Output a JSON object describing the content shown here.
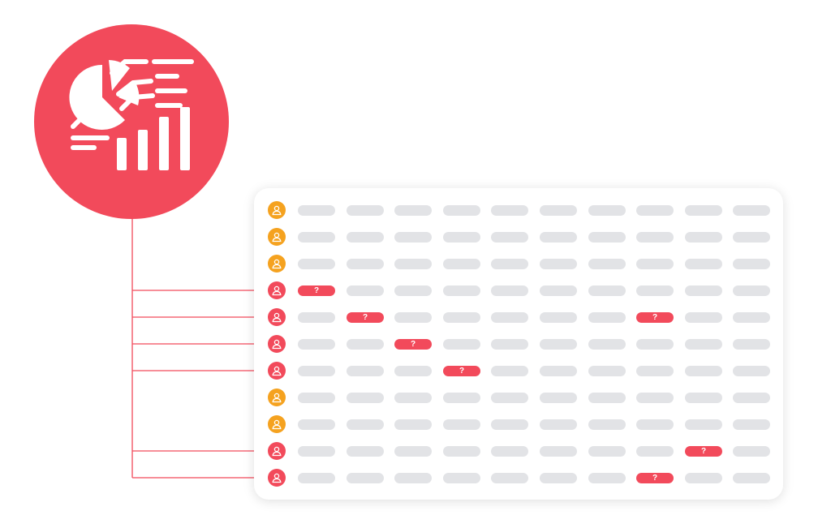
{
  "colors": {
    "accent": "#f24a5b",
    "default_avatar": "#f5a21f",
    "cell": "#e2e3e6"
  },
  "badge": {
    "icon": "analytics-chart-icon"
  },
  "table": {
    "columns": 10,
    "flag_label": "?",
    "rows": [
      {
        "status": "default",
        "flagged_cells": []
      },
      {
        "status": "default",
        "flagged_cells": []
      },
      {
        "status": "default",
        "flagged_cells": []
      },
      {
        "status": "flagged",
        "flagged_cells": [
          0
        ]
      },
      {
        "status": "flagged",
        "flagged_cells": [
          1,
          7
        ]
      },
      {
        "status": "flagged",
        "flagged_cells": [
          2
        ]
      },
      {
        "status": "flagged",
        "flagged_cells": [
          3
        ]
      },
      {
        "status": "default",
        "flagged_cells": []
      },
      {
        "status": "default",
        "flagged_cells": []
      },
      {
        "status": "flagged",
        "flagged_cells": [
          8
        ]
      },
      {
        "status": "flagged",
        "flagged_cells": [
          7
        ]
      }
    ]
  }
}
